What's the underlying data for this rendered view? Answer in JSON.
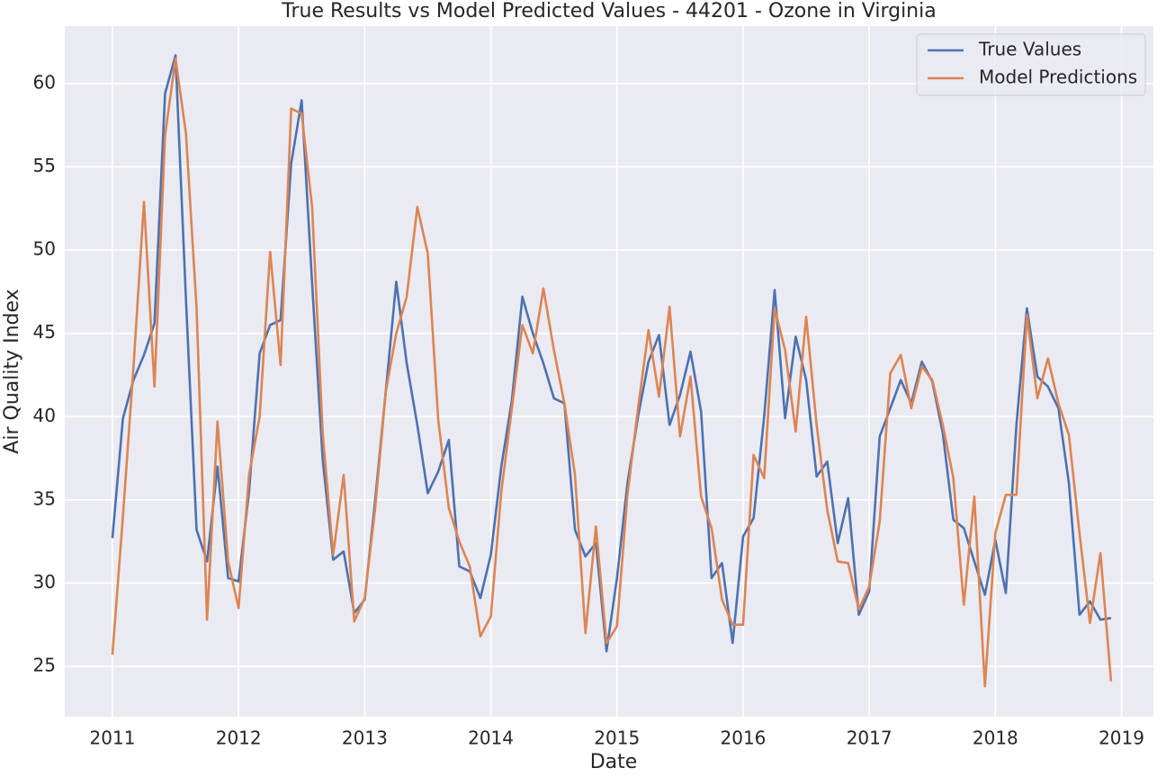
{
  "chart_data": {
    "type": "line",
    "title": "True Results vs Model Predicted Values - 44201 - Ozone in Virginia",
    "x_label": "Date",
    "y_label": "Air Quality Index",
    "x": [
      2011,
      2011.083,
      2011.167,
      2011.25,
      2011.333,
      2011.417,
      2011.5,
      2011.583,
      2011.667,
      2011.75,
      2011.833,
      2011.917,
      2012,
      2012.083,
      2012.167,
      2012.25,
      2012.333,
      2012.417,
      2012.5,
      2012.583,
      2012.667,
      2012.75,
      2012.833,
      2012.917,
      2013,
      2013.083,
      2013.167,
      2013.25,
      2013.333,
      2013.417,
      2013.5,
      2013.583,
      2013.667,
      2013.75,
      2013.833,
      2013.917,
      2014,
      2014.083,
      2014.167,
      2014.25,
      2014.333,
      2014.417,
      2014.5,
      2014.583,
      2014.667,
      2014.75,
      2014.833,
      2014.917,
      2015,
      2015.083,
      2015.167,
      2015.25,
      2015.333,
      2015.417,
      2015.5,
      2015.583,
      2015.667,
      2015.75,
      2015.833,
      2015.917,
      2016,
      2016.083,
      2016.167,
      2016.25,
      2016.333,
      2016.417,
      2016.5,
      2016.583,
      2016.667,
      2016.75,
      2016.833,
      2016.917,
      2017,
      2017.083,
      2017.167,
      2017.25,
      2017.333,
      2017.417,
      2017.5,
      2017.583,
      2017.667,
      2017.75,
      2017.833,
      2017.917,
      2018,
      2018.083,
      2018.167,
      2018.25,
      2018.333,
      2018.417,
      2018.5,
      2018.583,
      2018.667,
      2018.75,
      2018.833,
      2018.917
    ],
    "series": [
      {
        "name": "True Values",
        "color": "#4c72b0",
        "values": [
          32.7,
          39.9,
          42.2,
          43.7,
          45.6,
          59.4,
          61.7,
          47,
          33.2,
          31.3,
          37.0,
          30.3,
          30.1,
          35.5,
          43.8,
          45.5,
          45.8,
          55.2,
          59.0,
          48,
          37.4,
          31.4,
          31.9,
          28.2,
          29.0,
          35,
          41.5,
          48.1,
          43.2,
          39.5,
          35.4,
          36.7,
          38.6,
          31.0,
          30.7,
          29.1,
          31.7,
          37,
          41,
          47.2,
          45,
          43.2,
          41.1,
          40.8,
          33.2,
          31.6,
          32.4,
          25.9,
          30.3,
          36.0,
          40,
          43.3,
          44.9,
          39.5,
          41.3,
          43.9,
          40.3,
          30.3,
          31.2,
          26.4,
          32.8,
          33.9,
          40,
          47.6,
          39.9,
          44.8,
          42.2,
          36.4,
          37.3,
          32.4,
          35.1,
          28.1,
          29.5,
          38.8,
          40.5,
          42.2,
          40.8,
          43.3,
          42.1,
          39.0,
          33.8,
          33.3,
          31.3,
          29.3,
          32.6,
          29.4,
          39.5,
          46.5,
          42.4,
          41.8,
          40.5,
          36,
          28.1,
          28.9,
          27.8,
          27.9
        ]
      },
      {
        "name": "Model Predictions",
        "color": "#dd8452",
        "values": [
          25.7,
          34,
          43,
          52.9,
          41.8,
          56.9,
          61.5,
          57,
          46.5,
          27.8,
          39.7,
          31.3,
          28.5,
          36.5,
          40,
          49.9,
          43.1,
          58.5,
          58.2,
          52.6,
          39,
          31.7,
          36.5,
          27.7,
          29.1,
          34.5,
          41.5,
          45.0,
          47.2,
          52.6,
          49.8,
          39.8,
          34.5,
          32.5,
          31.0,
          26.8,
          28.0,
          35.5,
          40.5,
          45.5,
          43.8,
          47.7,
          44.0,
          40.8,
          36.5,
          27.0,
          33.4,
          26.4,
          27.4,
          35.3,
          40.5,
          45.2,
          41.2,
          46.6,
          38.8,
          42.4,
          35.2,
          33.3,
          29.0,
          27.5,
          27.5,
          37.7,
          36.3,
          46.5,
          44.0,
          39.1,
          46.0,
          39.5,
          34.4,
          31.3,
          31.2,
          28.4,
          29.8,
          33.7,
          42.6,
          43.7,
          40.5,
          43.0,
          42.2,
          39.5,
          36.3,
          28.7,
          35.2,
          23.8,
          33.0,
          35.3,
          35.3,
          46.1,
          41.1,
          43.5,
          40.8,
          38.9,
          33,
          27.6,
          31.8,
          24.1
        ]
      }
    ],
    "xlim": [
      2010.622,
      2019.253
    ],
    "xticks": [
      2011,
      2012,
      2013,
      2014,
      2015,
      2016,
      2017,
      2018,
      2019
    ],
    "ylim": [
      21.97,
      63.46
    ],
    "yticks": [
      25,
      30,
      35,
      40,
      45,
      50,
      55,
      60
    ],
    "grid": true,
    "legend": "upper right"
  }
}
